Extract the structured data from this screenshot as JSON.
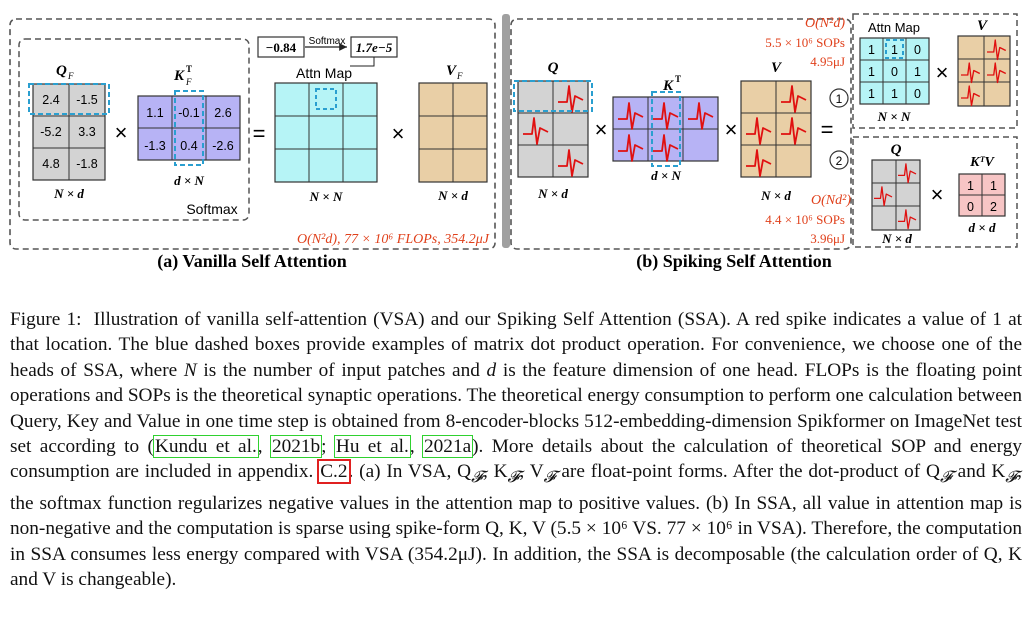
{
  "panel_a": {
    "title": "(a) Vanilla Self Attention",
    "q_label": "Q",
    "q_sub": "F",
    "q_values": [
      "2.4",
      "-1.5",
      "-5.2",
      "3.3",
      "4.8",
      "-1.8"
    ],
    "q_dim": "N × d",
    "k_label": "K",
    "k_sup": "T",
    "k_sub": "F",
    "k_values": [
      "1.1",
      "-0.1",
      "2.6",
      "-1.3",
      "0.4",
      "-2.6"
    ],
    "k_dim": "d × N",
    "softmax_label": "Softmax",
    "softmax_top_label": "Softmax",
    "before_value": "−0.84",
    "after_value": "1.7e−5",
    "attn_label": "Attn Map",
    "attn_dim": "N × N",
    "v_label": "V",
    "v_sub": "F",
    "v_dim": "N × d",
    "cost": "O(N²d),  77 × 10⁶ FLOPs,  354.2μJ",
    "times": "×",
    "equals": "="
  },
  "panel_b": {
    "title": "(b) Spiking Self Attention",
    "q_label": "Q",
    "q_dim": "N × d",
    "k_label": "K",
    "k_sup": "T",
    "k_dim": "d × N",
    "v_label": "V",
    "v_dim": "N × d",
    "cost1_o": "O(N²d)",
    "cost1_sops": "5.5 × 10⁶ SOPs",
    "cost1_energy": "4.95μJ",
    "cost2_o": "O(Nd²)",
    "cost2_sops": "4.4 × 10⁶ SOPs",
    "cost2_energy": "3.96μJ",
    "attn_label": "Attn Map",
    "attn_values": [
      "1",
      "1",
      "0",
      "1",
      "0",
      "1",
      "1",
      "1",
      "0"
    ],
    "attn_dim": "N × N",
    "v2_label": "V",
    "q2_label": "Q",
    "q2_dim": "N × d",
    "ktv_label": "KᵀV",
    "ktv_values": [
      "1",
      "1",
      "0",
      "2"
    ],
    "ktv_dim": "d × d",
    "circle1": "1",
    "circle2": "2",
    "times": "×",
    "equals": "="
  },
  "caption": {
    "label": "Figure 1:",
    "seg1": "Illustration of vanilla self-attention (VSA) and our Spiking Self Attention (SSA). A red spike indicates a value of 1 at that location. The blue dashed boxes provide examples of matrix dot product operation. For convenience, we choose one of the heads of SSA, where ",
    "var_N": "N",
    "seg2": " is the number of input patches and ",
    "var_d": "d",
    "seg3": " is the feature dimension of one head. FLOPs is the floating point operations and SOPs is the theoretical synaptic operations. The theoretical energy consumption to perform one calculation between Query, Key and Value in one time step is obtained from 8-encoder-blocks 512-embedding-dimension Spikformer on ImageNet test set according to (",
    "cite1a": "Kundu et al.",
    "cite1b": "2021b",
    "cite2a": "Hu et al.",
    "cite2b": "2021a",
    "seg4": "). More details about the calculation of theoretical SOP and energy consumption are included in appendix. ",
    "ref1": "C.2",
    "seg5": ". (a) In VSA, Q",
    "seg6": " are float-point forms. After the dot-product of Q",
    "seg7": " and K",
    "seg8": ", the softmax function regularizes negative values in the attention map to positive values. (b) In SSA, all value in attention map is non-negative and the computation is sparse using spike-form Q, K, V (5.5 × 10⁶ VS. 77 × 10⁶ in VSA). Therefore, the computation in SSA consumes less energy compared with VSA (354.2μJ). In addition, the SSA is decomposable (the calculation order of Q, K and V is changeable).",
    "sub_F": "𝓕",
    "seg5b": ", K",
    "seg5c": ", V"
  },
  "colors": {
    "q_gray": "#d3d3d3",
    "k_purple": "#b7b3f5",
    "attn_cyan": "#b6f4f6",
    "v_tan": "#e9cfa6",
    "ktv_pink": "#f7c5c5",
    "spike_red": "#e01010",
    "dash_blue": "#2a9fd0",
    "cost_red": "#e0401b",
    "cite_green": "#2fd12f"
  }
}
